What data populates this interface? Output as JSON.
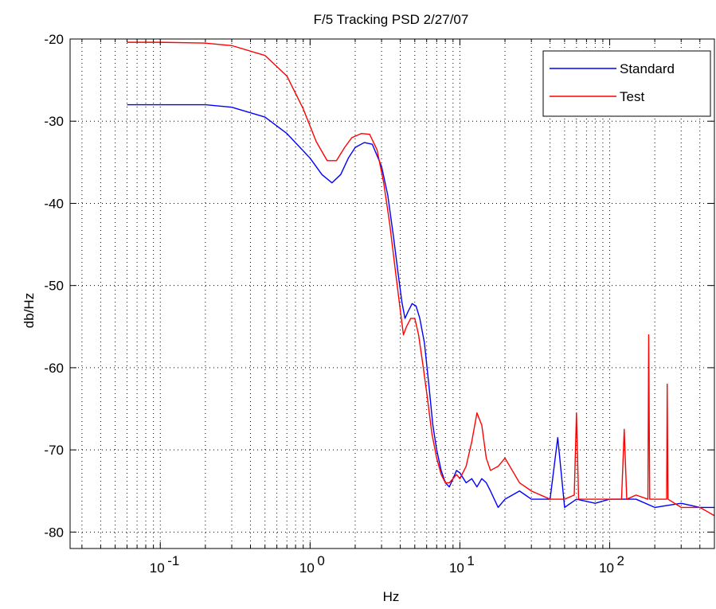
{
  "chart_data": {
    "type": "line",
    "title": "F/5 Tracking PSD 2/27/07",
    "xlabel": "Hz",
    "ylabel": "db/Hz",
    "xscale": "log",
    "xlim": [
      0.025,
      500
    ],
    "ylim": [
      -82,
      -20
    ],
    "x_ticks": [
      {
        "value": 0.1,
        "base": "10",
        "exp": "-1"
      },
      {
        "value": 1,
        "base": "10",
        "exp": "0"
      },
      {
        "value": 10,
        "base": "10",
        "exp": "1"
      },
      {
        "value": 100,
        "base": "10",
        "exp": "2"
      }
    ],
    "y_ticks": [
      -20,
      -30,
      -40,
      -50,
      -60,
      -70,
      -80
    ],
    "y_tick_labels": [
      "-20",
      "-30",
      "-40",
      "-50",
      "-60",
      "-70",
      "-80"
    ],
    "grid": true,
    "grid_style": "dotted",
    "legend_position": "top-right",
    "series": [
      {
        "name": "Standard",
        "color": "#0000ff",
        "x": [
          0.06,
          0.1,
          0.2,
          0.3,
          0.5,
          0.7,
          1.0,
          1.2,
          1.4,
          1.6,
          1.8,
          2.0,
          2.3,
          2.6,
          3.0,
          3.3,
          3.6,
          3.9,
          4.1,
          4.3,
          4.5,
          4.8,
          5.1,
          5.4,
          5.8,
          6.2,
          6.6,
          7.0,
          7.5,
          8.0,
          8.5,
          9.0,
          9.5,
          10.0,
          11.0,
          12.0,
          13.0,
          14.0,
          15.0,
          16.0,
          18.0,
          20.0,
          25.0,
          30.0,
          40.0,
          45.0,
          50.0,
          60.0,
          80.0,
          100.0,
          150.0,
          200.0,
          300.0,
          400.0,
          500.0
        ],
        "y": [
          -28,
          -28,
          -28,
          -28.3,
          -29.5,
          -31.5,
          -34.5,
          -36.5,
          -37.5,
          -36.5,
          -34.5,
          -33.2,
          -32.6,
          -32.8,
          -35.5,
          -39,
          -44,
          -49,
          -52,
          -54,
          -53.2,
          -52.2,
          -52.5,
          -54,
          -57,
          -62,
          -67,
          -70,
          -72.5,
          -74,
          -74.5,
          -73.5,
          -72.5,
          -72.8,
          -74,
          -73.5,
          -74.5,
          -73.5,
          -74,
          -75,
          -77,
          -76,
          -75,
          -76,
          -76,
          -68.5,
          -77,
          -76,
          -76.5,
          -76,
          -76,
          -77,
          -76.5,
          -77,
          -77
        ]
      },
      {
        "name": "Test",
        "color": "#ff0000",
        "x": [
          0.06,
          0.1,
          0.2,
          0.3,
          0.5,
          0.7,
          0.9,
          1.1,
          1.3,
          1.5,
          1.7,
          1.9,
          2.2,
          2.5,
          2.8,
          3.1,
          3.4,
          3.7,
          4.0,
          4.2,
          4.4,
          4.7,
          5.0,
          5.3,
          5.7,
          6.1,
          6.5,
          7.0,
          7.5,
          8.0,
          8.5,
          9.0,
          9.5,
          10.0,
          11.0,
          12.0,
          13.0,
          14.0,
          15.0,
          16.0,
          18.0,
          20.0,
          25.0,
          30.0,
          40.0,
          50.0,
          58.0,
          60.0,
          62.0,
          80.0,
          100.0,
          120.0,
          125.0,
          130.0,
          150.0,
          180.0,
          182.0,
          185.0,
          200.0,
          240.0,
          242.0,
          245.0,
          300.0,
          400.0,
          500.0
        ],
        "y": [
          -20.4,
          -20.4,
          -20.5,
          -20.8,
          -22,
          -24.5,
          -28.5,
          -32.5,
          -34.8,
          -34.8,
          -33.2,
          -32,
          -31.5,
          -31.6,
          -33.5,
          -37.5,
          -42.5,
          -48,
          -53,
          -56,
          -55,
          -54,
          -54,
          -56,
          -60,
          -64,
          -68,
          -71,
          -73,
          -74,
          -74,
          -73.5,
          -73,
          -73.5,
          -72,
          -69,
          -65.5,
          -67,
          -71,
          -72.5,
          -72,
          -71,
          -74,
          -75,
          -76,
          -76,
          -75.5,
          -65.5,
          -76,
          -76,
          -76,
          -76,
          -67.5,
          -76,
          -75.5,
          -76,
          -56,
          -76,
          -76,
          -76,
          -62,
          -76,
          -77,
          -77,
          -78
        ]
      }
    ]
  }
}
